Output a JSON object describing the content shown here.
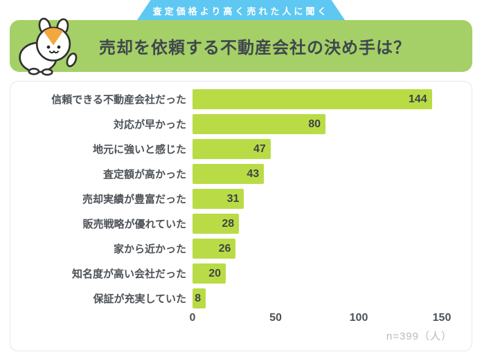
{
  "ribbon": {
    "label": "査定価格より高く売れた人に聞く"
  },
  "header": {
    "title": "売却を依頼する不動産会社の決め手は？"
  },
  "chart_data": {
    "type": "bar",
    "orientation": "horizontal",
    "title": "売却を依頼する不動産会社の決め手は？",
    "subtitle": "査定価格より高く売れた人に聞く",
    "categories": [
      "信頼できる不動産会社だった",
      "対応が早かった",
      "地元に強いと感じた",
      "査定額が高かった",
      "売却実績が豊富だった",
      "販売戦略が優れていた",
      "家から近かった",
      "知名度が高い会社だった",
      "保証が充実していた"
    ],
    "values": [
      144,
      80,
      47,
      43,
      31,
      28,
      26,
      20,
      8
    ],
    "xlabel": "",
    "ylabel": "",
    "xlim": [
      0,
      150
    ],
    "xticks": [
      0,
      50,
      100,
      150
    ],
    "grid": false,
    "legend": false,
    "note": "n=399（人）"
  },
  "colors": {
    "header_green": "#a4d067",
    "bar_green": "#b9dc46",
    "ribbon_blue": "#5ec8f3",
    "dark_text": "#40474d",
    "note_text": "#b5b9bd"
  }
}
